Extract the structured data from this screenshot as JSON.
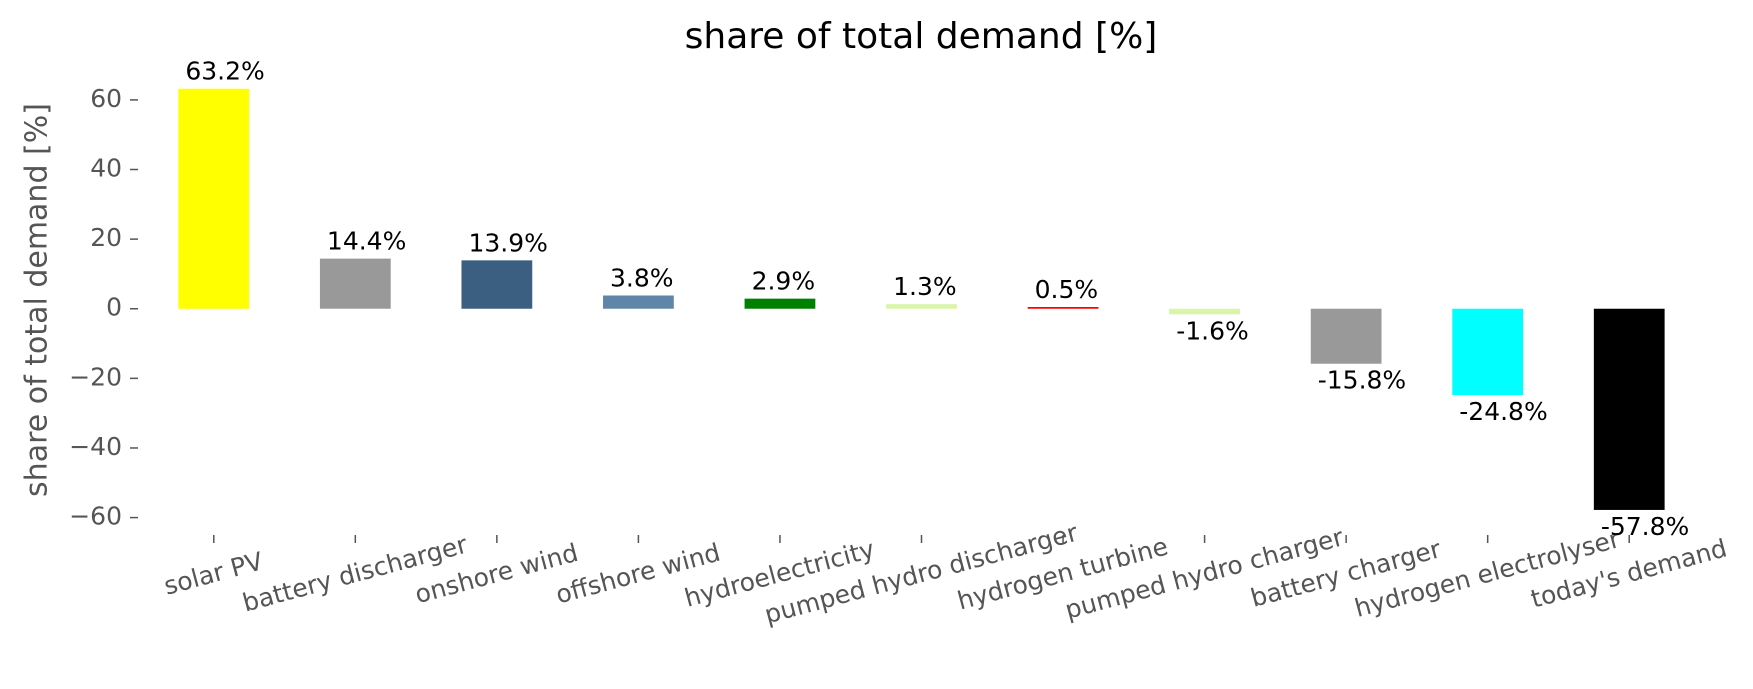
{
  "chart_data": {
    "type": "bar",
    "title": "share of total demand [%]",
    "ylabel": "share of total demand [%]",
    "categories": [
      "solar PV",
      "battery discharger",
      "onshore wind",
      "offshore wind",
      "hydroelectricity",
      "pumped hydro discharger",
      "hydrogen turbine",
      "pumped hydro charger",
      "battery charger",
      "hydrogen electrolyser",
      "today's demand"
    ],
    "values": [
      63.2,
      14.4,
      13.9,
      3.8,
      2.9,
      1.3,
      0.5,
      -1.6,
      -15.8,
      -24.8,
      -57.8
    ],
    "value_labels": [
      "63.2%",
      "14.4%",
      "13.9%",
      "3.8%",
      "2.9%",
      "1.3%",
      "0.5%",
      "-1.6%",
      "-15.8%",
      "-24.8%",
      "-57.8%"
    ],
    "colors": [
      "#ffff00",
      "#999999",
      "#3b5f80",
      "#5f85a8",
      "#008000",
      "#d9f5a8",
      "#ff0000",
      "#d9f5a8",
      "#999999",
      "#00ffff",
      "#000000"
    ],
    "ylim": [
      -65,
      66
    ],
    "yticks": [
      {
        "value": -60,
        "label": "−60"
      },
      {
        "value": -40,
        "label": "−40"
      },
      {
        "value": -20,
        "label": "−20"
      },
      0,
      20,
      40,
      60
    ],
    "grid": false
  }
}
